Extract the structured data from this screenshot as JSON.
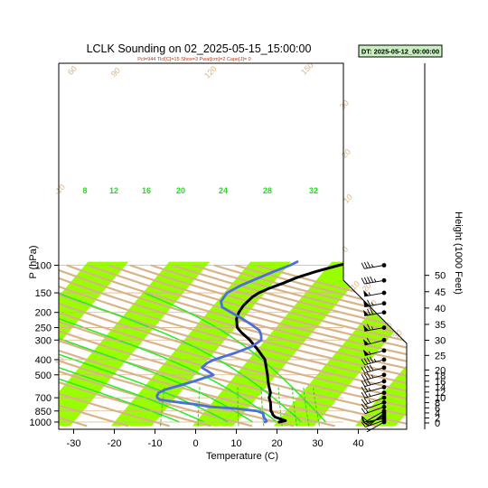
{
  "chart_data": {
    "type": "line",
    "title": "LCLK Sounding on 02_2025-05-15_15:00:00",
    "subtitle": "Pcl=944 Tlcl[C]=15 Shox=3 Pwat[cm]=2 Cape[J]= 0",
    "datetime_box": "DT: 2025-05-12_00:00:00",
    "xlabel": "Temperature (C)",
    "ylabel": "P (hPa)",
    "y2label": "Height (1000 Feet)",
    "x_ticks": [
      -30,
      -20,
      -10,
      0,
      10,
      20,
      30,
      40
    ],
    "x_tick_labels": [
      "-30",
      "-20",
      "-10",
      "0",
      "10",
      "20",
      "30",
      "40"
    ],
    "y_ticks": [
      100,
      150,
      200,
      250,
      300,
      400,
      500,
      700,
      850,
      1000
    ],
    "y_tick_labels": [
      "100",
      "150",
      "200",
      "250",
      "300",
      "400",
      "500",
      "700",
      "850",
      "1000"
    ],
    "height_ticks_kft": [
      0,
      2,
      4,
      6,
      8,
      10,
      12,
      14,
      16,
      18,
      20,
      25,
      30,
      35,
      40,
      45,
      50
    ],
    "height_tick_labels": [
      "0",
      "2",
      "4",
      "6",
      "8",
      "10",
      "12",
      "14",
      "16",
      "18",
      "20",
      "25",
      "30",
      "35",
      "40",
      "45",
      "50"
    ],
    "mixing_ratio_labels": [
      "8",
      "12",
      "16",
      "20",
      "24",
      "28",
      "32"
    ],
    "theta_labels": [
      "60",
      "90",
      "120",
      "150",
      "30",
      "20",
      "10",
      "0",
      "-10",
      "-20",
      "-30",
      "-10",
      "10",
      "20",
      "30"
    ],
    "xlim": [
      -34,
      41
    ],
    "ylim": [
      1050,
      100
    ],
    "y_scale": "log",
    "isotherm_band_color": "#99ff00",
    "dry_adiabat_color": "#d9b488",
    "moist_adiabat_color": "#22ee22",
    "mixing_ratio_color": "#22cc22",
    "series": [
      {
        "name": "Temperature",
        "color": "#000000",
        "points": [
          [
            1000,
            20.5
          ],
          [
            980,
            21.8
          ],
          [
            960,
            20.5
          ],
          [
            930,
            18.5
          ],
          [
            900,
            17.5
          ],
          [
            870,
            16.8
          ],
          [
            850,
            16.2
          ],
          [
            800,
            15.3
          ],
          [
            750,
            14.3
          ],
          [
            700,
            13.0
          ],
          [
            650,
            12.3
          ],
          [
            600,
            10.8
          ],
          [
            550,
            9.3
          ],
          [
            500,
            7.8
          ],
          [
            450,
            6.0
          ],
          [
            400,
            4.0
          ],
          [
            350,
            0.5
          ],
          [
            300,
            -3.8
          ],
          [
            270,
            -7.3
          ],
          [
            250,
            -9.5
          ],
          [
            220,
            -11.5
          ],
          [
            200,
            -12.3
          ],
          [
            180,
            -12.6
          ],
          [
            160,
            -12.2
          ],
          [
            150,
            -11.5
          ],
          [
            140,
            -9.8
          ],
          [
            130,
            -7.5
          ],
          [
            120,
            -5.3
          ],
          [
            110,
            -2.0
          ],
          [
            100,
            2.5
          ],
          [
            95,
            5.5
          ]
        ]
      },
      {
        "name": "Dewpoint",
        "color": "#4a6fd8",
        "points": [
          [
            1000,
            17.0
          ],
          [
            990,
            17.3
          ],
          [
            960,
            16.5
          ],
          [
            920,
            15.5
          ],
          [
            880,
            14.8
          ],
          [
            850,
            12.8
          ],
          [
            820,
            7.0
          ],
          [
            800,
            0.5
          ],
          [
            770,
            -4.0
          ],
          [
            740,
            -10.0
          ],
          [
            720,
            -13.5
          ],
          [
            700,
            -14.5
          ],
          [
            680,
            -15.0
          ],
          [
            650,
            -15.2
          ],
          [
            620,
            -14.2
          ],
          [
            600,
            -12.7
          ],
          [
            550,
            -9.0
          ],
          [
            500,
            -5.5
          ],
          [
            470,
            -8.0
          ],
          [
            450,
            -9.8
          ],
          [
            420,
            -9.5
          ],
          [
            400,
            -8.5
          ],
          [
            360,
            -4.5
          ],
          [
            330,
            -2.0
          ],
          [
            300,
            -1.0
          ],
          [
            280,
            -2.0
          ],
          [
            260,
            -3.5
          ],
          [
            240,
            -6.5
          ],
          [
            220,
            -10.0
          ],
          [
            200,
            -14.2
          ],
          [
            185,
            -17.5
          ],
          [
            170,
            -19.0
          ],
          [
            150,
            -19.3
          ],
          [
            135,
            -17.5
          ],
          [
            120,
            -14.5
          ],
          [
            110,
            -12.3
          ],
          [
            100,
            -9.5
          ],
          [
            95,
            -8.5
          ]
        ]
      }
    ],
    "wind_levels": [
      {
        "p": 1000,
        "spd": 5,
        "dir": 240
      },
      {
        "p": 975,
        "spd": 10,
        "dir": 250
      },
      {
        "p": 950,
        "spd": 10,
        "dir": 260
      },
      {
        "p": 925,
        "spd": 15,
        "dir": 250
      },
      {
        "p": 900,
        "spd": 10,
        "dir": 240
      },
      {
        "p": 875,
        "spd": 10,
        "dir": 230
      },
      {
        "p": 850,
        "spd": 10,
        "dir": 240
      },
      {
        "p": 800,
        "spd": 15,
        "dir": 250
      },
      {
        "p": 750,
        "spd": 20,
        "dir": 250
      },
      {
        "p": 700,
        "spd": 25,
        "dir": 250
      },
      {
        "p": 650,
        "spd": 25,
        "dir": 255
      },
      {
        "p": 600,
        "spd": 25,
        "dir": 255
      },
      {
        "p": 550,
        "spd": 30,
        "dir": 255
      },
      {
        "p": 500,
        "spd": 35,
        "dir": 255
      },
      {
        "p": 450,
        "spd": 40,
        "dir": 255
      },
      {
        "p": 400,
        "spd": 45,
        "dir": 255
      },
      {
        "p": 350,
        "spd": 55,
        "dir": 255
      },
      {
        "p": 300,
        "spd": 60,
        "dir": 255
      },
      {
        "p": 250,
        "spd": 65,
        "dir": 260
      },
      {
        "p": 200,
        "spd": 70,
        "dir": 260
      },
      {
        "p": 175,
        "spd": 65,
        "dir": 260
      },
      {
        "p": 150,
        "spd": 55,
        "dir": 260
      },
      {
        "p": 125,
        "spd": 45,
        "dir": 260
      },
      {
        "p": 100,
        "spd": 35,
        "dir": 260
      }
    ],
    "grid": true,
    "legend": "none"
  }
}
